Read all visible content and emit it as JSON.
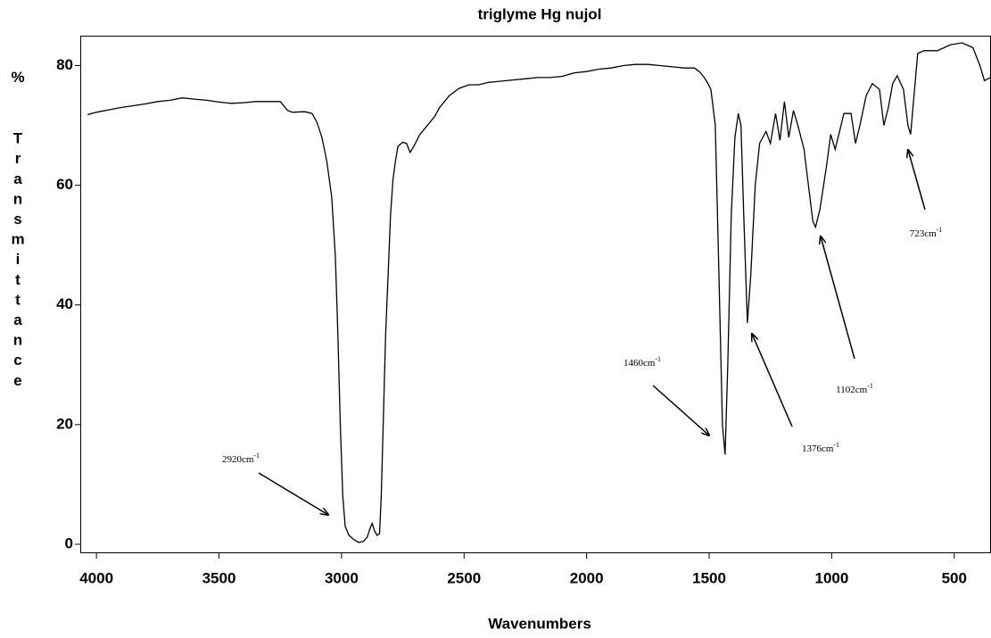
{
  "chart_data": {
    "type": "line",
    "title": "triglyme Hg nujol",
    "x_label": "Wavenumbers",
    "y_label": "% Transmittance",
    "color": "#000000",
    "xlim": [
      4066,
      350
    ],
    "ylim": [
      -1.5,
      85
    ],
    "xticks": [
      4000,
      3500,
      3000,
      2500,
      2000,
      1500,
      1000,
      500
    ],
    "yticks": [
      0,
      20,
      40,
      60,
      80
    ],
    "x": [
      4036,
      4000,
      3950,
      3900,
      3850,
      3800,
      3750,
      3700,
      3650,
      3600,
      3550,
      3500,
      3450,
      3400,
      3350,
      3300,
      3250,
      3220,
      3200,
      3150,
      3120,
      3100,
      3080,
      3060,
      3040,
      3025,
      3015,
      3005,
      2995,
      2985,
      2970,
      2950,
      2930,
      2910,
      2895,
      2885,
      2875,
      2865,
      2855,
      2845,
      2838,
      2830,
      2820,
      2810,
      2800,
      2790,
      2780,
      2770,
      2750,
      2735,
      2720,
      2705,
      2680,
      2650,
      2620,
      2600,
      2560,
      2520,
      2480,
      2440,
      2400,
      2350,
      2300,
      2250,
      2200,
      2150,
      2100,
      2050,
      2000,
      1950,
      1900,
      1850,
      1800,
      1750,
      1700,
      1650,
      1600,
      1560,
      1540,
      1520,
      1505,
      1493,
      1475,
      1460,
      1446,
      1435,
      1424,
      1410,
      1395,
      1381,
      1370,
      1359,
      1344,
      1330,
      1312,
      1294,
      1268,
      1250,
      1229,
      1211,
      1193,
      1175,
      1156,
      1138,
      1113,
      1095,
      1077,
      1066,
      1048,
      1022,
      1004,
      986,
      950,
      921,
      903,
      885,
      859,
      834,
      805,
      787,
      769,
      751,
      733,
      707,
      689,
      678,
      664,
      649,
      624,
      569,
      515,
      468,
      424,
      395,
      377,
      352
    ],
    "values": [
      71.8,
      72.2,
      72.6,
      73,
      73.3,
      73.6,
      74,
      74.2,
      74.6,
      74.4,
      74.2,
      73.9,
      73.7,
      73.8,
      74,
      74,
      74,
      72.5,
      72.2,
      72.3,
      72,
      70.5,
      68,
      64,
      58,
      48,
      35,
      20,
      8,
      3,
      1.5,
      0.8,
      0.3,
      0.5,
      1.2,
      2.5,
      3.5,
      2.2,
      1.5,
      1.8,
      8,
      20,
      35,
      45,
      55,
      61,
      64,
      66.5,
      67.2,
      67,
      65.5,
      66.5,
      68.5,
      70,
      71.5,
      73,
      75,
      76.2,
      76.8,
      76.8,
      77.2,
      77.4,
      77.6,
      77.8,
      78,
      78,
      78.2,
      78.8,
      79,
      79.4,
      79.6,
      80,
      80.2,
      80.2,
      80,
      79.8,
      79.6,
      79.6,
      79,
      78,
      77,
      76,
      70,
      45,
      20,
      15,
      30,
      55,
      68,
      72,
      70,
      55,
      37,
      45,
      60,
      67,
      69,
      67,
      72,
      67.5,
      74,
      68,
      72.5,
      70,
      66,
      60,
      54,
      53,
      56,
      63,
      68.5,
      66,
      72,
      72,
      67,
      70,
      75,
      77,
      76,
      70,
      73,
      77,
      78.3,
      76,
      70,
      68.5,
      75,
      82,
      82.5,
      82.5,
      83.5,
      83.8,
      83,
      80,
      77.5,
      78
    ],
    "annotations": [
      {
        "text": "2920cm",
        "sup": "-1"
      },
      {
        "text": "1460cm",
        "sup": "-1"
      },
      {
        "text": "1376cm",
        "sup": "-1"
      },
      {
        "text": "1102cm",
        "sup": "-1"
      },
      {
        "text": "723cm",
        "sup": "-1"
      }
    ]
  }
}
